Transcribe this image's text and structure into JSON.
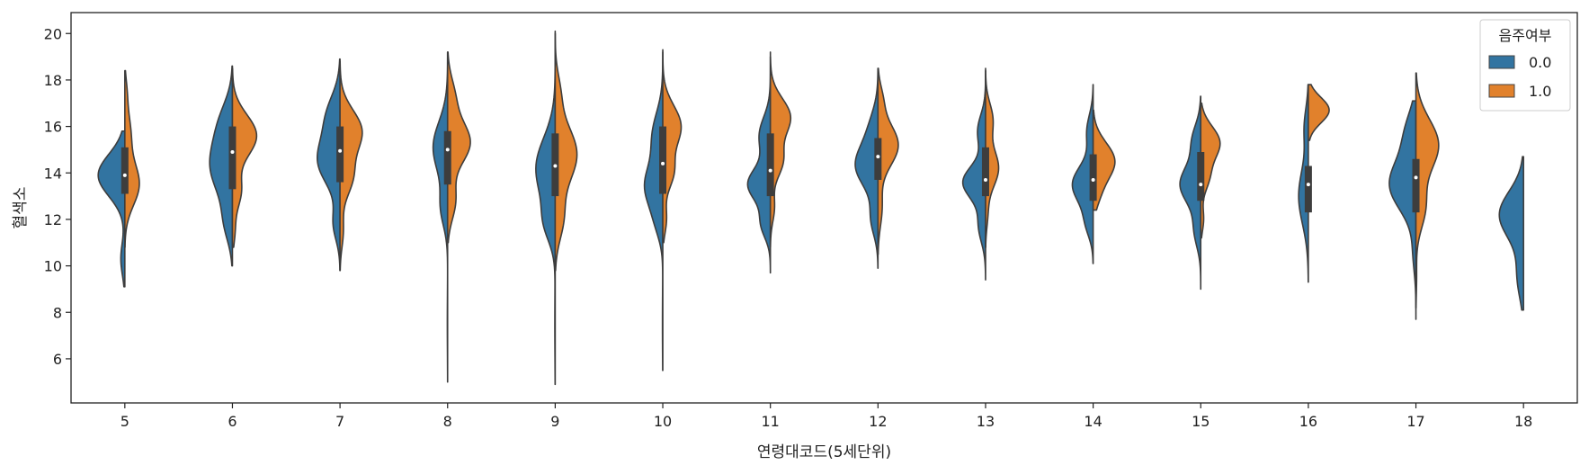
{
  "chart_data": {
    "type": "violin",
    "split": true,
    "xlabel": "연령대코드(5세단위)",
    "ylabel": "혈색소",
    "ylim": [
      4.1,
      20.9
    ],
    "yticks": [
      6,
      8,
      10,
      12,
      14,
      16,
      18,
      20
    ],
    "categories": [
      "5",
      "6",
      "7",
      "8",
      "9",
      "10",
      "11",
      "12",
      "13",
      "14",
      "15",
      "16",
      "17",
      "18"
    ],
    "legend": {
      "title": "음주여부",
      "placement": "top-right"
    },
    "series": [
      {
        "name": "0.0",
        "color": "#3274A1",
        "side": "left",
        "violins": [
          {
            "min": 9.1,
            "max": 15.8,
            "modes": [
              {
                "mu": 13.9,
                "sd": 0.9,
                "w": 1.0
              },
              {
                "mu": 10.3,
                "sd": 0.7,
                "w": 0.15
              }
            ],
            "width": 0.55
          },
          {
            "min": 10.0,
            "max": 18.6,
            "modes": [
              {
                "mu": 14.3,
                "sd": 1.2,
                "w": 1.0
              },
              {
                "mu": 11.8,
                "sd": 0.8,
                "w": 0.3
              },
              {
                "mu": 16.3,
                "sd": 0.9,
                "w": 0.4
              }
            ],
            "width": 0.47
          },
          {
            "min": 9.8,
            "max": 18.9,
            "modes": [
              {
                "mu": 14.5,
                "sd": 1.0,
                "w": 1.0
              },
              {
                "mu": 16.5,
                "sd": 0.9,
                "w": 0.55
              },
              {
                "mu": 11.8,
                "sd": 0.7,
                "w": 0.3
              }
            ],
            "width": 0.47
          },
          {
            "min": 5.0,
            "max": 19.2,
            "modes": [
              {
                "mu": 15.1,
                "sd": 1.1,
                "w": 1.0
              },
              {
                "mu": 12.5,
                "sd": 0.8,
                "w": 0.45
              },
              {
                "mu": 7.5,
                "sd": 1.2,
                "w": 0.02
              }
            ],
            "width": 0.3
          },
          {
            "min": 4.9,
            "max": 20.1,
            "modes": [
              {
                "mu": 14.2,
                "sd": 1.3,
                "w": 1.0
              },
              {
                "mu": 11.8,
                "sd": 0.8,
                "w": 0.45
              },
              {
                "mu": 7.5,
                "sd": 1.5,
                "w": 0.02
              }
            ],
            "width": 0.4
          },
          {
            "min": 5.5,
            "max": 19.3,
            "modes": [
              {
                "mu": 13.4,
                "sd": 0.9,
                "w": 1.0
              },
              {
                "mu": 15.6,
                "sd": 1.0,
                "w": 0.6
              },
              {
                "mu": 11.8,
                "sd": 0.7,
                "w": 0.3
              },
              {
                "mu": 7.5,
                "sd": 1.4,
                "w": 0.02
              }
            ],
            "width": 0.38
          },
          {
            "min": 9.7,
            "max": 19.2,
            "modes": [
              {
                "mu": 13.5,
                "sd": 0.7,
                "w": 1.0
              },
              {
                "mu": 15.6,
                "sd": 0.8,
                "w": 0.5
              },
              {
                "mu": 11.8,
                "sd": 0.6,
                "w": 0.4
              }
            ],
            "width": 0.47
          },
          {
            "min": 9.9,
            "max": 18.5,
            "modes": [
              {
                "mu": 14.3,
                "sd": 0.9,
                "w": 1.0
              },
              {
                "mu": 12.0,
                "sd": 0.7,
                "w": 0.3
              },
              {
                "mu": 16.0,
                "sd": 0.8,
                "w": 0.3
              }
            ],
            "width": 0.47
          },
          {
            "min": 9.4,
            "max": 18.5,
            "modes": [
              {
                "mu": 13.6,
                "sd": 0.7,
                "w": 1.0
              },
              {
                "mu": 15.8,
                "sd": 0.7,
                "w": 0.35
              },
              {
                "mu": 11.7,
                "sd": 0.7,
                "w": 0.3
              }
            ],
            "width": 0.47
          },
          {
            "min": 10.1,
            "max": 17.8,
            "modes": [
              {
                "mu": 13.5,
                "sd": 0.8,
                "w": 1.0
              },
              {
                "mu": 15.8,
                "sd": 0.7,
                "w": 0.3
              },
              {
                "mu": 11.8,
                "sd": 0.6,
                "w": 0.3
              }
            ],
            "width": 0.43
          },
          {
            "min": 9.0,
            "max": 17.3,
            "modes": [
              {
                "mu": 13.5,
                "sd": 0.8,
                "w": 1.0
              },
              {
                "mu": 15.4,
                "sd": 0.7,
                "w": 0.4
              },
              {
                "mu": 11.5,
                "sd": 0.7,
                "w": 0.3
              }
            ],
            "width": 0.43
          },
          {
            "min": 9.3,
            "max": 17.8,
            "modes": [
              {
                "mu": 13.0,
                "sd": 1.2,
                "w": 1.0
              },
              {
                "mu": 16.0,
                "sd": 0.8,
                "w": 0.4
              }
            ],
            "width": 0.2
          },
          {
            "min": 7.7,
            "max": 17.1,
            "modes": [
              {
                "mu": 13.5,
                "sd": 1.1,
                "w": 1.0
              },
              {
                "mu": 15.8,
                "sd": 0.9,
                "w": 0.35
              },
              {
                "mu": 10.5,
                "sd": 0.8,
                "w": 0.1
              }
            ],
            "width": 0.55
          },
          {
            "min": 8.1,
            "max": 14.7,
            "modes": [
              {
                "mu": 12.2,
                "sd": 1.0,
                "w": 1.0
              },
              {
                "mu": 9.5,
                "sd": 0.9,
                "w": 0.25
              }
            ],
            "width": 0.5
          }
        ]
      },
      {
        "name": "1.0",
        "color": "#E1812C",
        "side": "right",
        "violins": [
          {
            "min": 10.8,
            "max": 18.4,
            "modes": [
              {
                "mu": 13.5,
                "sd": 0.9,
                "w": 1.0
              },
              {
                "mu": 15.7,
                "sd": 0.9,
                "w": 0.4
              },
              {
                "mu": 17.5,
                "sd": 0.6,
                "w": 0.12
              }
            ],
            "width": 0.3
          },
          {
            "min": 10.8,
            "max": 18.5,
            "modes": [
              {
                "mu": 15.6,
                "sd": 0.9,
                "w": 1.0
              },
              {
                "mu": 13.2,
                "sd": 0.7,
                "w": 0.35
              },
              {
                "mu": 11.5,
                "sd": 0.6,
                "w": 0.1
              }
            ],
            "width": 0.5
          },
          {
            "min": 9.8,
            "max": 18.8,
            "modes": [
              {
                "mu": 15.8,
                "sd": 0.9,
                "w": 1.0
              },
              {
                "mu": 13.8,
                "sd": 0.8,
                "w": 0.55
              },
              {
                "mu": 11.5,
                "sd": 0.7,
                "w": 0.15
              }
            ],
            "width": 0.46
          },
          {
            "min": 11.0,
            "max": 19.2,
            "modes": [
              {
                "mu": 15.3,
                "sd": 0.9,
                "w": 1.0
              },
              {
                "mu": 17.3,
                "sd": 0.8,
                "w": 0.3
              },
              {
                "mu": 12.8,
                "sd": 0.8,
                "w": 0.35
              }
            ],
            "width": 0.47
          },
          {
            "min": 9.8,
            "max": 20.0,
            "modes": [
              {
                "mu": 14.8,
                "sd": 1.2,
                "w": 1.0
              },
              {
                "mu": 12.0,
                "sd": 0.9,
                "w": 0.35
              },
              {
                "mu": 17.5,
                "sd": 0.8,
                "w": 0.2
              }
            ],
            "width": 0.45
          },
          {
            "min": 11.0,
            "max": 19.2,
            "modes": [
              {
                "mu": 16.0,
                "sd": 0.9,
                "w": 1.0
              },
              {
                "mu": 14.0,
                "sd": 0.7,
                "w": 0.55
              },
              {
                "mu": 12.0,
                "sd": 0.6,
                "w": 0.2
              }
            ],
            "width": 0.38
          },
          {
            "min": 10.8,
            "max": 19.0,
            "modes": [
              {
                "mu": 16.4,
                "sd": 0.8,
                "w": 1.0
              },
              {
                "mu": 14.5,
                "sd": 0.7,
                "w": 0.6
              },
              {
                "mu": 12.5,
                "sd": 0.6,
                "w": 0.2
              }
            ],
            "width": 0.42
          },
          {
            "min": 10.5,
            "max": 18.5,
            "modes": [
              {
                "mu": 15.2,
                "sd": 0.9,
                "w": 1.0
              },
              {
                "mu": 17.2,
                "sd": 0.6,
                "w": 0.2
              },
              {
                "mu": 12.5,
                "sd": 0.8,
                "w": 0.2
              }
            ],
            "width": 0.42
          },
          {
            "min": 10.8,
            "max": 18.4,
            "modes": [
              {
                "mu": 14.2,
                "sd": 0.8,
                "w": 1.0
              },
              {
                "mu": 16.3,
                "sd": 0.7,
                "w": 0.55
              },
              {
                "mu": 12.2,
                "sd": 0.6,
                "w": 0.15
              }
            ],
            "width": 0.27
          },
          {
            "min": 12.4,
            "max": 16.7,
            "modes": [
              {
                "mu": 14.5,
                "sd": 0.8,
                "w": 1.0
              },
              {
                "mu": 13.0,
                "sd": 0.6,
                "w": 0.2
              }
            ],
            "width": 0.45
          },
          {
            "min": 11.2,
            "max": 17.0,
            "modes": [
              {
                "mu": 15.3,
                "sd": 0.7,
                "w": 1.0
              },
              {
                "mu": 13.8,
                "sd": 0.6,
                "w": 0.4
              },
              {
                "mu": 12.0,
                "sd": 0.5,
                "w": 0.15
              }
            ],
            "width": 0.4
          },
          {
            "min": 15.4,
            "max": 17.8,
            "modes": [
              {
                "mu": 16.7,
                "sd": 0.55,
                "w": 1.0
              }
            ],
            "width": 0.43
          },
          {
            "min": 8.2,
            "max": 18.3,
            "modes": [
              {
                "mu": 15.2,
                "sd": 1.1,
                "w": 1.0
              },
              {
                "mu": 12.5,
                "sd": 0.9,
                "w": 0.4
              },
              {
                "mu": 9.5,
                "sd": 0.7,
                "w": 0.03
              }
            ],
            "width": 0.47
          },
          null
        ]
      }
    ],
    "boxes": [
      {
        "q1": 13.1,
        "median": 13.9,
        "q3": 15.1
      },
      {
        "q1": 13.3,
        "median": 14.9,
        "q3": 16.0
      },
      {
        "q1": 13.6,
        "median": 14.95,
        "q3": 16.0
      },
      {
        "q1": 13.5,
        "median": 15.0,
        "q3": 15.8
      },
      {
        "q1": 13.0,
        "median": 14.3,
        "q3": 15.7
      },
      {
        "q1": 13.1,
        "median": 14.4,
        "q3": 16.0
      },
      {
        "q1": 13.0,
        "median": 14.1,
        "q3": 15.7
      },
      {
        "q1": 13.7,
        "median": 14.7,
        "q3": 15.5
      },
      {
        "q1": 13.0,
        "median": 13.7,
        "q3": 15.1
      },
      {
        "q1": 12.8,
        "median": 13.7,
        "q3": 14.8
      },
      {
        "q1": 12.8,
        "median": 13.5,
        "q3": 14.9
      },
      {
        "q1": 12.3,
        "median": 13.5,
        "q3": 14.3
      },
      {
        "q1": 12.3,
        "median": 13.8,
        "q3": 14.6
      },
      null
    ]
  }
}
